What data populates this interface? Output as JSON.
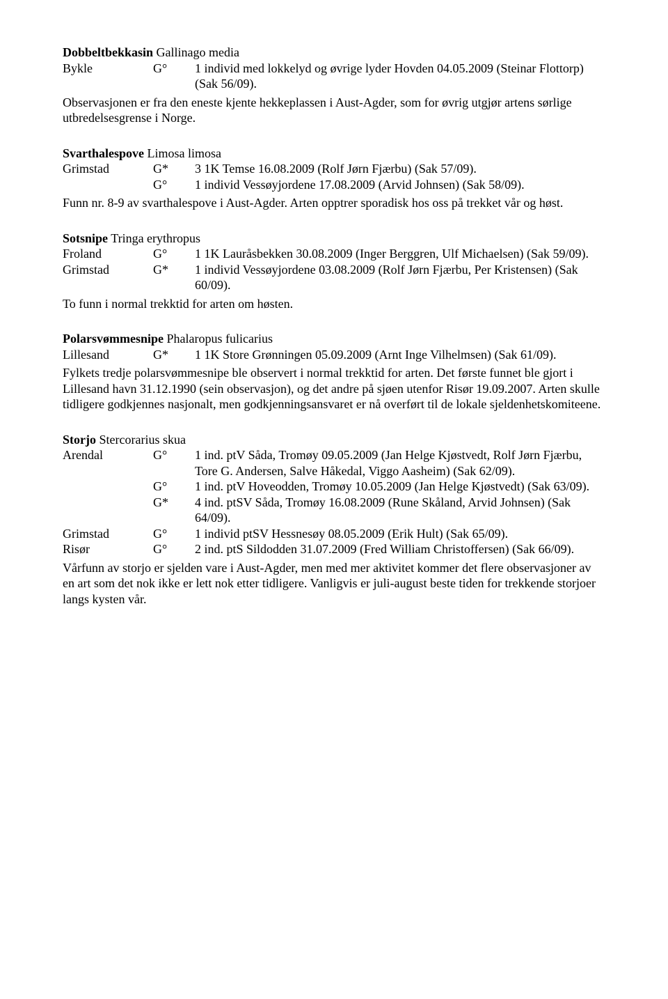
{
  "sections": {
    "s1": {
      "species_common": "Dobbeltbekkasin",
      "species_latin": " Gallinago media",
      "r1_loc": "Bykle",
      "r1_code": "G°",
      "r1_desc": "1 individ med lokkelyd og øvrige lyder Hovden 04.05.2009 (Steinar Flottorp) (Sak 56/09).",
      "p1": "Observasjonen er fra den eneste kjente hekkeplassen i Aust-Agder, som for øvrig utgjør artens sørlige utbredelsesgrense i Norge."
    },
    "s2": {
      "species_common": "Svarthalespove",
      "species_latin": " Limosa limosa",
      "r1_loc": "Grimstad",
      "r1_code": "G*",
      "r1_desc": "3 1K Temse 16.08.2009 (Rolf Jørn Fjærbu) (Sak 57/09).",
      "r2_loc": "",
      "r2_code": "G°",
      "r2_desc": "1 individ Vessøyjordene 17.08.2009 (Arvid Johnsen) (Sak 58/09).",
      "p1": "Funn nr. 8-9 av svarthalespove i Aust-Agder. Arten opptrer sporadisk hos oss på trekket vår og høst."
    },
    "s3": {
      "species_common": "Sotsnipe",
      "species_latin": " Tringa erythropus",
      "r1_loc": "Froland",
      "r1_code": "G°",
      "r1_desc": "1 1K Lauråsbekken 30.08.2009 (Inger Berggren, Ulf Michaelsen) (Sak 59/09).",
      "r2_loc": "Grimstad",
      "r2_code": "G*",
      "r2_desc": "1 individ Vessøyjordene 03.08.2009 (Rolf Jørn Fjærbu, Per Kristensen) (Sak 60/09).",
      "p1": "To funn i normal trekktid for arten om høsten."
    },
    "s4": {
      "species_common": "Polarsvømmesnipe",
      "species_latin": " Phalaropus fulicarius",
      "r1_loc": "Lillesand",
      "r1_code": "G*",
      "r1_desc": "1 1K Store Grønningen 05.09.2009 (Arnt Inge Vilhelmsen) (Sak 61/09).",
      "p1": "Fylkets tredje polarsvømmesnipe ble observert i normal trekktid for arten. Det første funnet ble gjort i Lillesand havn 31.12.1990 (sein observasjon), og det andre på sjøen utenfor Risør 19.09.2007. Arten skulle tidligere godkjennes nasjonalt, men godkjenningsansvaret er nå overført til de lokale sjeldenhetskomiteene."
    },
    "s5": {
      "species_common": "Storjo",
      "species_latin": " Stercorarius skua",
      "r1_loc": "Arendal",
      "r1_code": "G°",
      "r1_desc": "1 ind. ptV Såda, Tromøy 09.05.2009 (Jan Helge Kjøstvedt, Rolf Jørn Fjærbu, Tore G. Andersen, Salve Håkedal, Viggo Aasheim) (Sak 62/09).",
      "r2_loc": "",
      "r2_code": "G°",
      "r2_desc": "1 ind. ptV Hoveodden, Tromøy 10.05.2009 (Jan Helge Kjøstvedt) (Sak 63/09).",
      "r3_loc": "",
      "r3_code": "G*",
      "r3_desc": "4 ind. ptSV Såda, Tromøy 16.08.2009 (Rune Skåland, Arvid Johnsen) (Sak 64/09).",
      "r4_loc": "Grimstad",
      "r4_code": "G°",
      "r4_desc": "1 individ ptSV Hessnesøy 08.05.2009 (Erik Hult) (Sak 65/09).",
      "r5_loc": "Risør",
      "r5_code": "G°",
      "r5_desc": "2 ind. ptS Sildodden 31.07.2009 (Fred William Christoffersen) (Sak 66/09).",
      "p1": "Vårfunn av storjo er sjelden vare i Aust-Agder, men med mer aktivitet kommer det flere observasjoner av en art som det nok ikke er lett nok etter tidligere. Vanligvis er juli-august beste tiden for trekkende storjoer langs kysten vår."
    }
  }
}
